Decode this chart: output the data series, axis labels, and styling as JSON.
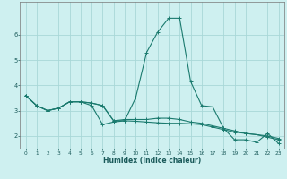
{
  "xlabel": "Humidex (Indice chaleur)",
  "bg_color": "#cef0f0",
  "line_color": "#1a7a6e",
  "grid_color": "#a8d8d8",
  "xlim": [
    -0.5,
    23.5
  ],
  "ylim": [
    1.5,
    7.3
  ],
  "xticks": [
    0,
    1,
    2,
    3,
    4,
    5,
    6,
    7,
    8,
    9,
    10,
    11,
    12,
    13,
    14,
    15,
    16,
    17,
    18,
    19,
    20,
    21,
    22,
    23
  ],
  "yticks": [
    2,
    3,
    4,
    5,
    6
  ],
  "line1_x": [
    0,
    1,
    2,
    3,
    4,
    5,
    6,
    7,
    8,
    9,
    10,
    11,
    12,
    13,
    14,
    15,
    16,
    17,
    18,
    19,
    20,
    21,
    22,
    23
  ],
  "line1_y": [
    3.6,
    3.2,
    3.0,
    3.1,
    3.35,
    3.35,
    3.2,
    2.45,
    2.55,
    2.6,
    3.5,
    5.3,
    6.1,
    6.65,
    6.65,
    4.15,
    3.2,
    3.15,
    2.3,
    1.85,
    1.85,
    1.75,
    2.1,
    1.7
  ],
  "line2_x": [
    0,
    1,
    2,
    3,
    4,
    5,
    6,
    7,
    8,
    9,
    10,
    11,
    12,
    13,
    14,
    15,
    16,
    17,
    18,
    19,
    20,
    21,
    22,
    23
  ],
  "line2_y": [
    3.6,
    3.2,
    3.0,
    3.1,
    3.35,
    3.35,
    3.3,
    3.2,
    2.6,
    2.65,
    2.65,
    2.65,
    2.7,
    2.7,
    2.65,
    2.55,
    2.5,
    2.4,
    2.3,
    2.2,
    2.1,
    2.05,
    2.0,
    1.9
  ],
  "line3_x": [
    0,
    1,
    2,
    3,
    4,
    5,
    6,
    7,
    8,
    9,
    10,
    11,
    12,
    13,
    14,
    15,
    16,
    17,
    18,
    19,
    20,
    21,
    22,
    23
  ],
  "line3_y": [
    3.6,
    3.2,
    3.0,
    3.1,
    3.35,
    3.35,
    3.3,
    3.2,
    2.6,
    2.6,
    2.58,
    2.55,
    2.52,
    2.5,
    2.5,
    2.48,
    2.45,
    2.35,
    2.25,
    2.15,
    2.1,
    2.05,
    1.95,
    1.85
  ]
}
